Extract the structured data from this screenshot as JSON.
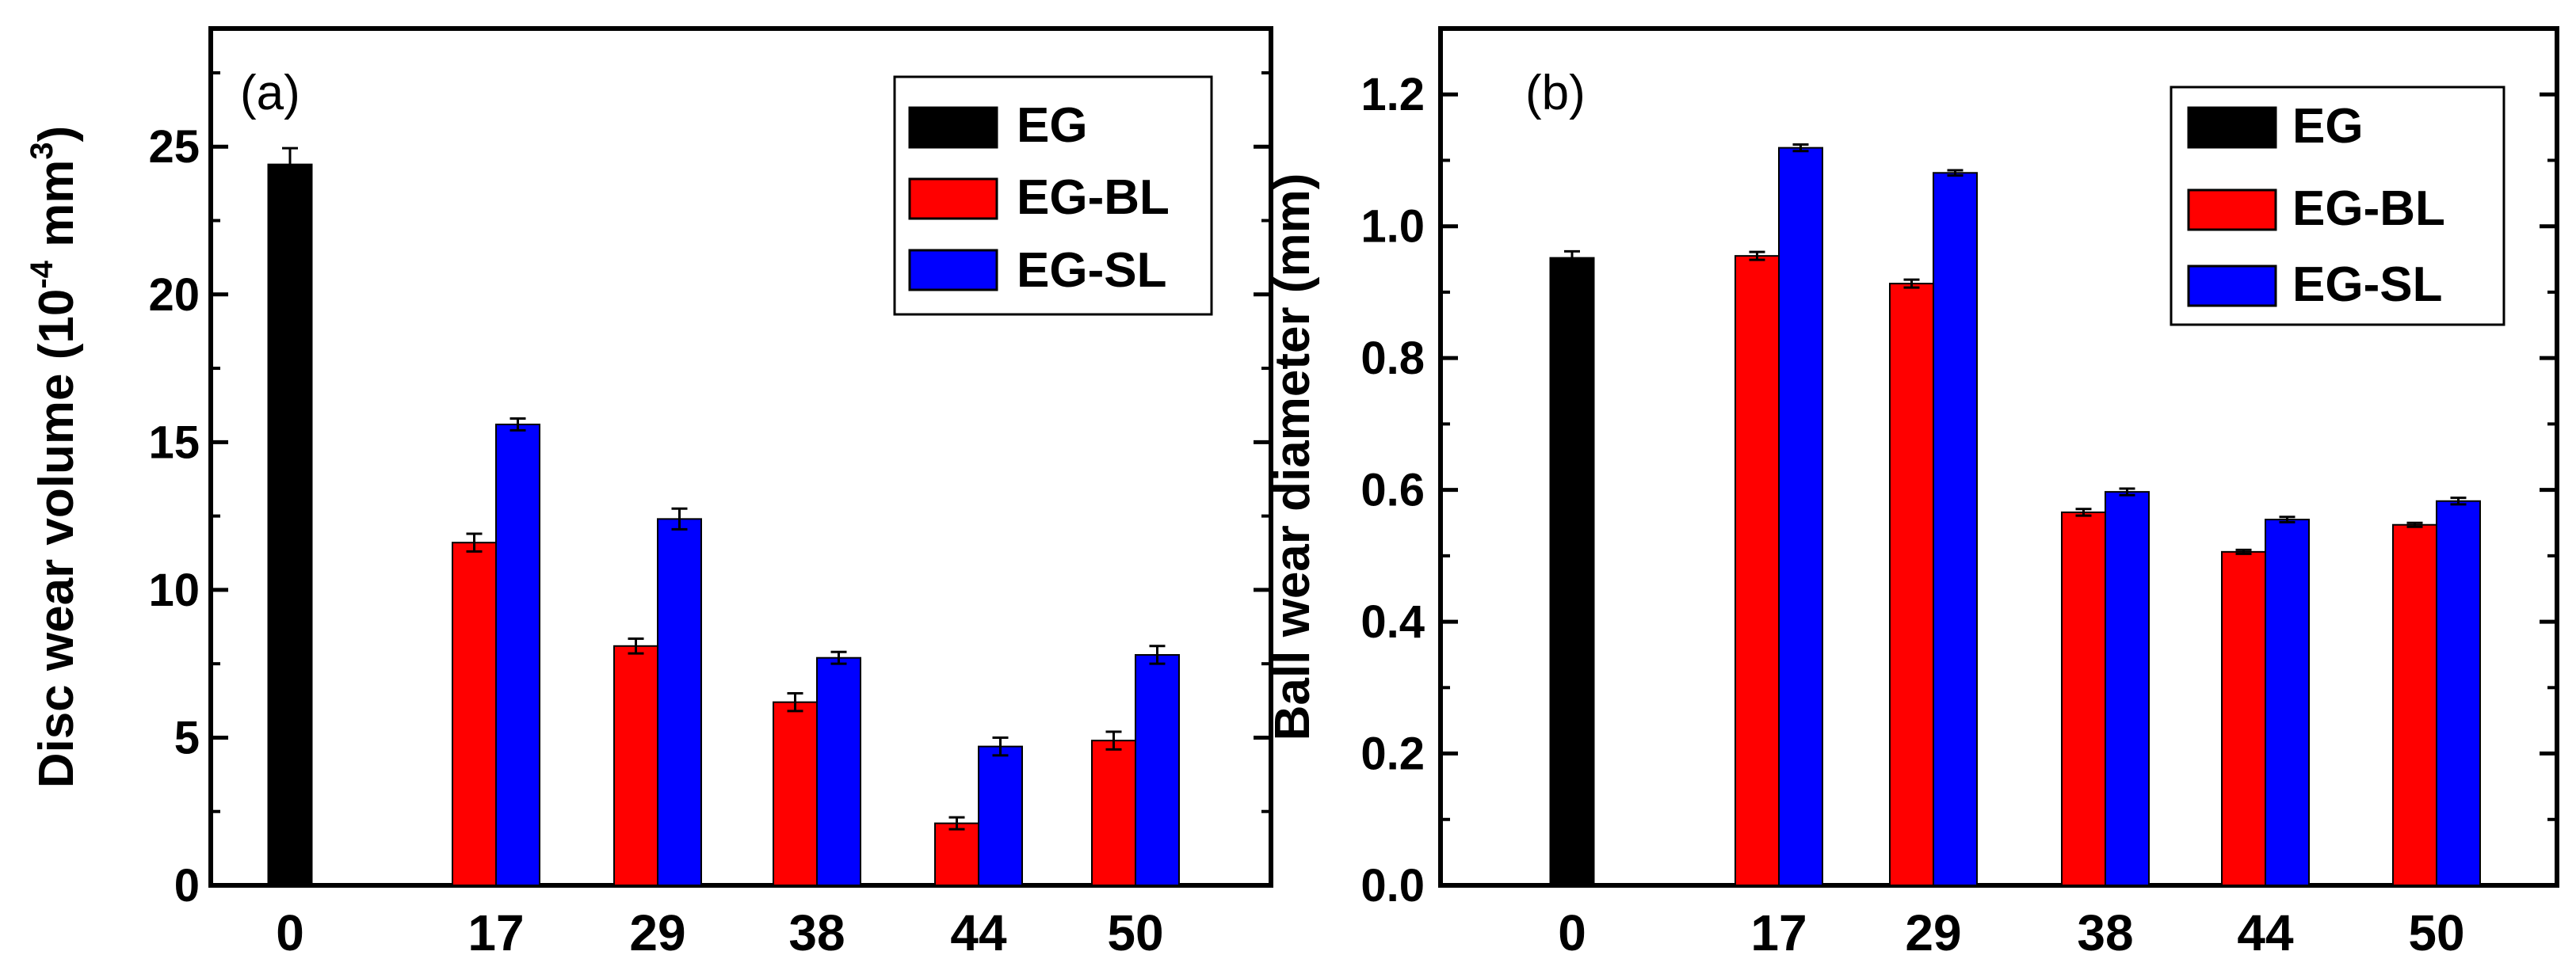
{
  "chart_data": [
    {
      "type": "bar",
      "panel_label": "(a)",
      "ylabel_main": "Disc wear volume (10",
      "ylabel_exp": "-4",
      "ylabel_unit": " mm",
      "ylabel_unit_exp": "3",
      "ylabel_close": ")",
      "ylim": [
        0,
        29
      ],
      "yticks": [
        "0",
        "5",
        "10",
        "15",
        "20",
        "25"
      ],
      "ytick_values": [
        0,
        5,
        10,
        15,
        20,
        25
      ],
      "categories": [
        "0",
        "17",
        "29",
        "38",
        "44",
        "50"
      ],
      "series": [
        {
          "name": "EG",
          "color": "#000000",
          "values": [
            24.4,
            null,
            null,
            null,
            null,
            null
          ],
          "errors": [
            0.55,
            null,
            null,
            null,
            null,
            null
          ]
        },
        {
          "name": "EG-BL",
          "color": "#ff0000",
          "values": [
            null,
            11.6,
            8.1,
            6.2,
            2.1,
            4.9
          ],
          "errors": [
            null,
            0.3,
            0.25,
            0.3,
            0.2,
            0.3
          ]
        },
        {
          "name": "EG-SL",
          "color": "#0000ff",
          "values": [
            null,
            15.6,
            12.4,
            7.7,
            4.7,
            7.8
          ],
          "errors": [
            null,
            0.2,
            0.35,
            0.2,
            0.3,
            0.3
          ]
        }
      ],
      "legend": [
        "EG",
        "EG-BL",
        "EG-SL"
      ],
      "legend_position": "top-right"
    },
    {
      "type": "bar",
      "panel_label": "(b)",
      "ylabel_main": "Ball wear diameter (mm)",
      "ylim": [
        0,
        1.3
      ],
      "yticks": [
        "0.0",
        "0.2",
        "0.4",
        "0.6",
        "0.8",
        "1.0",
        "1.2"
      ],
      "ytick_values": [
        0,
        0.2,
        0.4,
        0.6,
        0.8,
        1.0,
        1.2
      ],
      "categories": [
        "0",
        "17",
        "29",
        "38",
        "44",
        "50"
      ],
      "series": [
        {
          "name": "EG",
          "color": "#000000",
          "values": [
            0.952,
            null,
            null,
            null,
            null,
            null
          ],
          "errors": [
            0.01,
            null,
            null,
            null,
            null,
            null
          ]
        },
        {
          "name": "EG-BL",
          "color": "#ff0000",
          "values": [
            null,
            0.955,
            0.913,
            0.566,
            0.506,
            0.547
          ],
          "errors": [
            null,
            0.006,
            0.006,
            0.005,
            0.003,
            0.003
          ]
        },
        {
          "name": "EG-SL",
          "color": "#0000ff",
          "values": [
            null,
            1.119,
            1.081,
            0.597,
            0.555,
            0.583
          ],
          "errors": [
            null,
            0.005,
            0.004,
            0.005,
            0.004,
            0.005
          ]
        }
      ],
      "legend": [
        "EG",
        "EG-BL",
        "EG-SL"
      ],
      "legend_position": "top-right"
    }
  ]
}
